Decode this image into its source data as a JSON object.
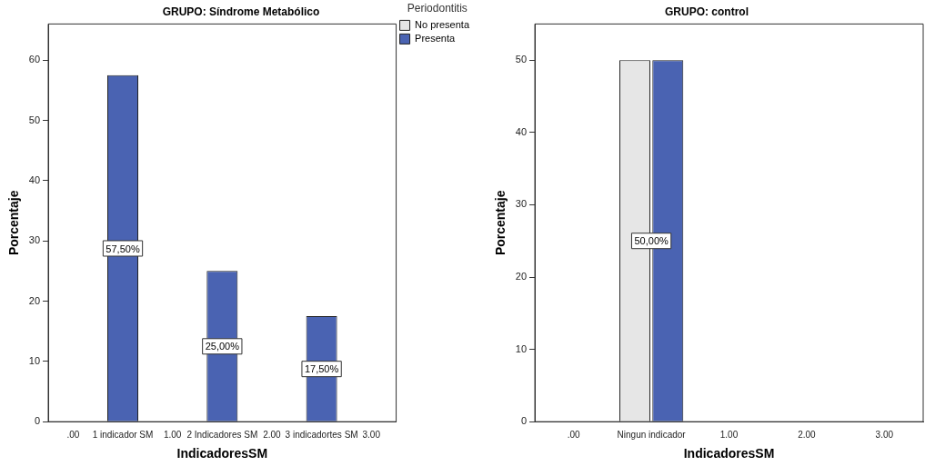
{
  "chart_data": [
    {
      "type": "bar",
      "title": "GRUPO: Síndrome Metabólico",
      "xlabel": "IndicadoresSM",
      "ylabel": "Porcentaje",
      "legend_title": "Periodontitis",
      "legend": "top right",
      "categories": [
        ".00",
        "1 indicador SM",
        "1.00",
        "2 Indicadores SM",
        "2.00",
        "3 indicadortes SM",
        "3.00"
      ],
      "series": [
        {
          "name": "No presenta",
          "color": "#e6e6e6",
          "values": [
            null,
            null,
            null,
            null,
            null,
            null,
            null
          ]
        },
        {
          "name": "Presenta",
          "color": "#4a63b2",
          "values": [
            null,
            57.5,
            null,
            25,
            null,
            17.5,
            null
          ],
          "value_labels": [
            null,
            "57,50%",
            null,
            "25,00%",
            null,
            "17,50%",
            null
          ]
        }
      ],
      "ylim": [
        0,
        66
      ],
      "yticks": [
        0,
        10,
        20,
        30,
        40,
        50,
        60
      ],
      "grid": false
    },
    {
      "type": "bar",
      "title": "GRUPO: control",
      "xlabel": "IndicadoresSM",
      "ylabel": "Porcentaje",
      "legend": false,
      "categories": [
        ".00",
        "Ningun indicador",
        "1.00",
        "2.00",
        "3.00"
      ],
      "series": [
        {
          "color": "#e6e6e6",
          "values": [
            null,
            50,
            null,
            null,
            null
          ]
        },
        {
          "color": "#4a63b2",
          "values": [
            null,
            50,
            null,
            null,
            null
          ],
          "value_labels": [
            null,
            "50,00%",
            null,
            null,
            null
          ]
        }
      ],
      "ylim": [
        0,
        55
      ],
      "yticks": [
        0,
        10,
        20,
        30,
        40,
        50
      ],
      "grid": false
    }
  ]
}
